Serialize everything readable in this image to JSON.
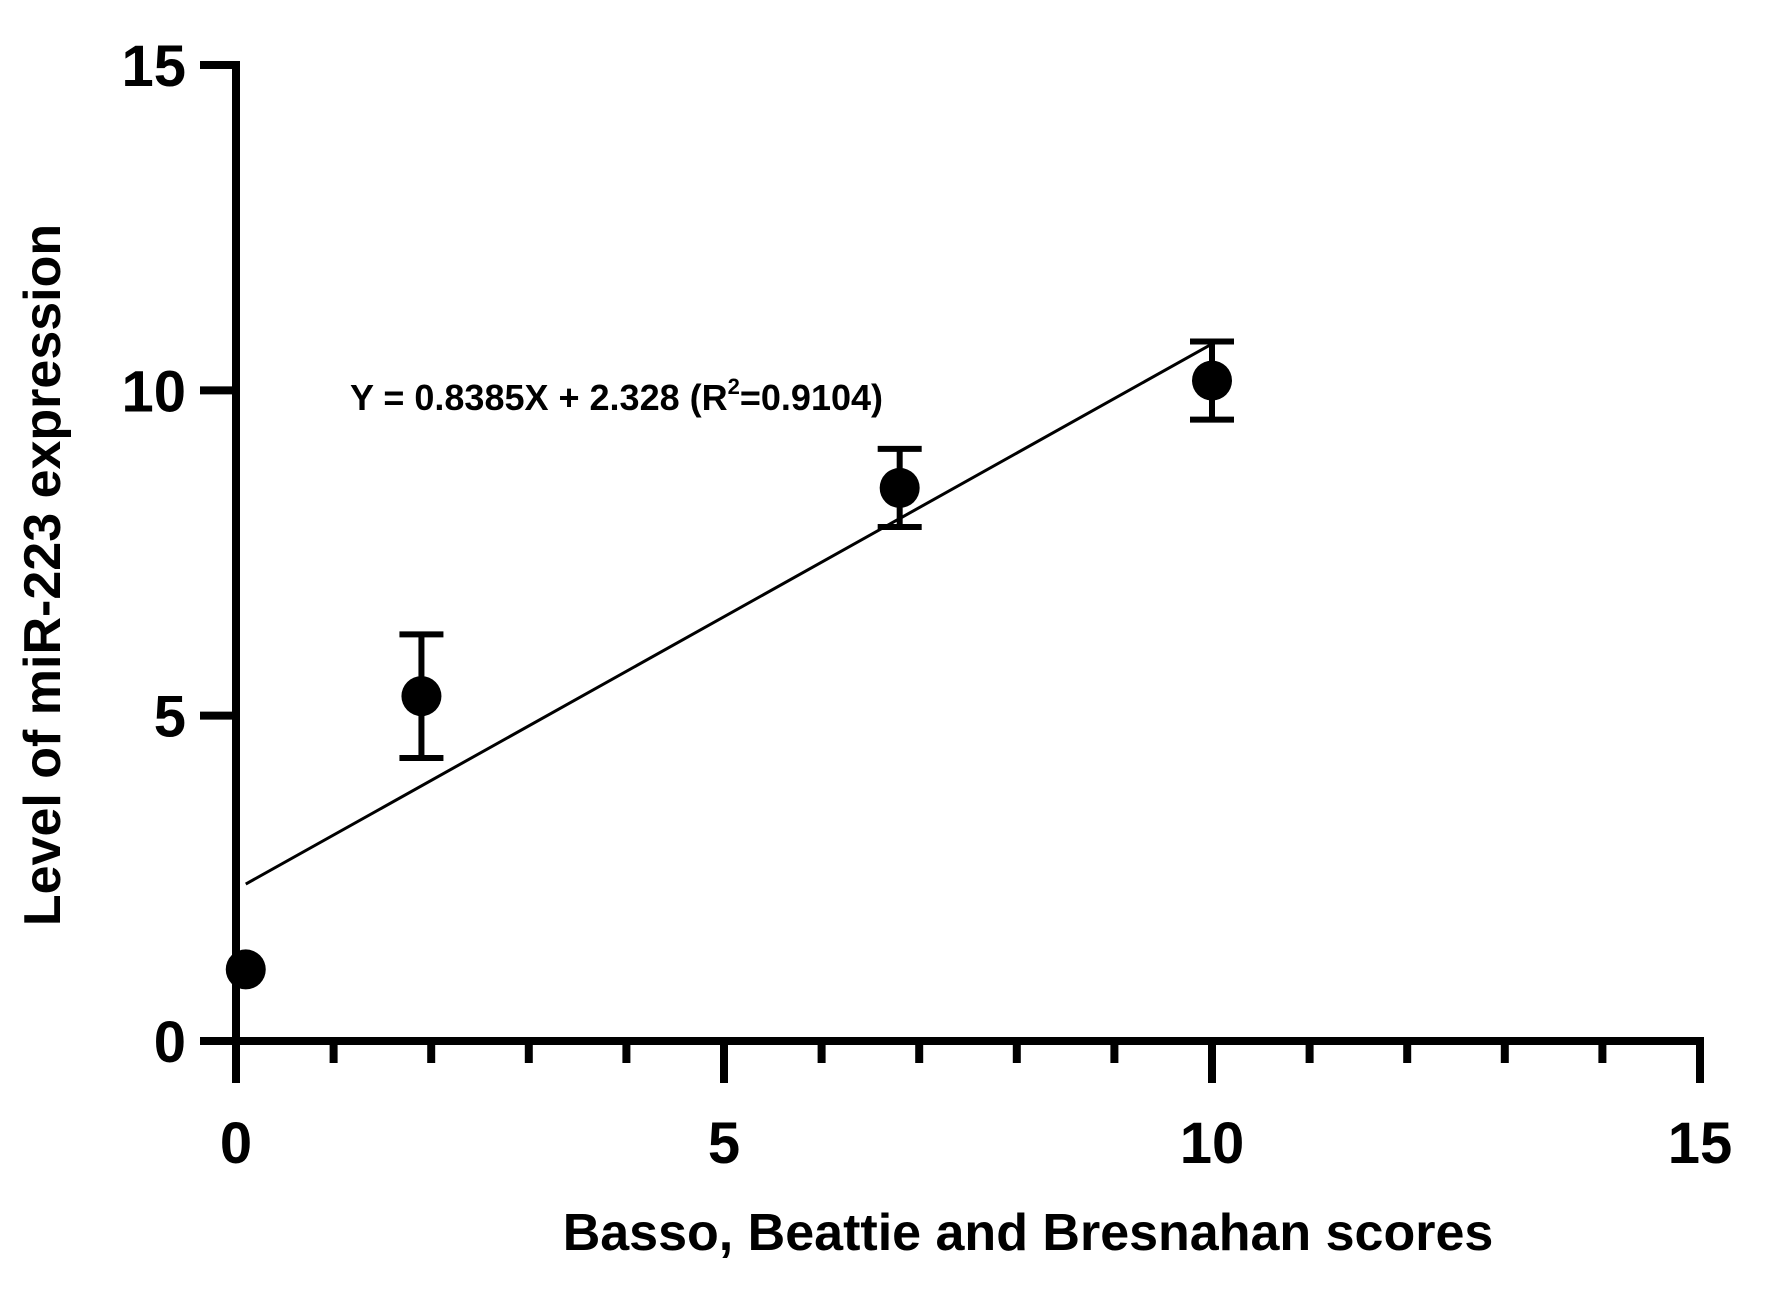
{
  "chart_data": {
    "type": "scatter",
    "xlabel": "Basso, Beattie and Bresnahan scores",
    "ylabel": "Level of miR-223 expression",
    "xlim": [
      0,
      15
    ],
    "ylim": [
      0,
      15
    ],
    "x_major_ticks": [
      0,
      5,
      10,
      15
    ],
    "x_minor_ticks": [
      1,
      2,
      3,
      4,
      6,
      7,
      8,
      9,
      11,
      12,
      13,
      14
    ],
    "y_major_ticks": [
      0,
      5,
      10,
      15
    ],
    "x_tick_labels": [
      "0",
      "5",
      "10",
      "15"
    ],
    "y_tick_labels": [
      "0",
      "5",
      "10",
      "15"
    ],
    "grid": false,
    "points": [
      {
        "x": 0.1,
        "y": 1.1,
        "err": 0
      },
      {
        "x": 1.9,
        "y": 5.3,
        "err": 0.95
      },
      {
        "x": 6.8,
        "y": 8.5,
        "err": 0.6
      },
      {
        "x": 10.0,
        "y": 10.15,
        "err": 0.6
      }
    ],
    "fit": {
      "slope": 0.8385,
      "intercept": 2.328,
      "x_range": [
        0.1,
        10.0
      ]
    },
    "annotation": {
      "main": "Y = 0.8385X + 2.328 (R",
      "sup": "2",
      "tail": "=0.9104)"
    },
    "colors": {
      "marker": "#000000",
      "line": "#000000",
      "axis": "#000000"
    }
  }
}
